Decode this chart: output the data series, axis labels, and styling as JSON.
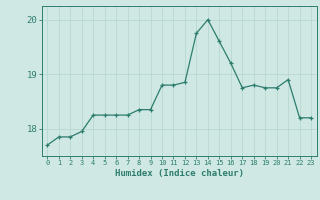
{
  "x": [
    0,
    1,
    2,
    3,
    4,
    5,
    6,
    7,
    8,
    9,
    10,
    11,
    12,
    13,
    14,
    15,
    16,
    17,
    18,
    19,
    20,
    21,
    22,
    23
  ],
  "y": [
    17.7,
    17.85,
    17.85,
    17.95,
    18.25,
    18.25,
    18.25,
    18.25,
    18.35,
    18.35,
    18.8,
    18.8,
    18.85,
    19.75,
    20.0,
    19.6,
    19.2,
    18.75,
    18.8,
    18.75,
    18.75,
    18.9,
    18.2,
    18.2
  ],
  "xlabel": "Humidex (Indice chaleur)",
  "ylim": [
    17.5,
    20.25
  ],
  "xlim": [
    -0.5,
    23.5
  ],
  "yticks": [
    18,
    19,
    20
  ],
  "xticks": [
    0,
    1,
    2,
    3,
    4,
    5,
    6,
    7,
    8,
    9,
    10,
    11,
    12,
    13,
    14,
    15,
    16,
    17,
    18,
    19,
    20,
    21,
    22,
    23
  ],
  "line_color": "#2d7d6e",
  "marker_color": "#2d7d6e",
  "bg_color": "#cfe8e3",
  "grid_color": "#b8d8d2",
  "axis_color": "#2d7d6e",
  "label_color": "#2d7d6e",
  "tick_color": "#2d7d6e"
}
